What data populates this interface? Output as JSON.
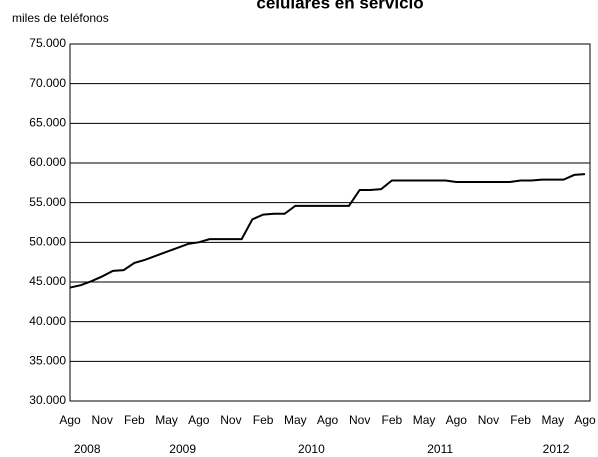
{
  "chart_data": {
    "type": "line",
    "title": "celulares en servicio",
    "y_label": "miles de teléfonos",
    "categories": [
      "Ago",
      null,
      null,
      "Nov",
      null,
      null,
      "Feb",
      null,
      null,
      "May",
      null,
      null,
      "Ago",
      null,
      null,
      "Nov",
      null,
      null,
      "Feb",
      null,
      null,
      "May",
      null,
      null,
      "Ago",
      null,
      null,
      "Nov",
      null,
      null,
      "Feb",
      null,
      null,
      "May",
      null,
      null,
      "Ago",
      null,
      null,
      "Nov",
      null,
      null,
      "Feb",
      null,
      null,
      "May",
      null,
      null,
      "Ago"
    ],
    "year_labels": [
      "2008",
      "2009",
      "2010",
      "2011",
      "2012"
    ],
    "series": [
      {
        "name": "celulares en servicio",
        "color": "#000000",
        "values": [
          44300,
          44600,
          45100,
          45700,
          46400,
          46500,
          47400,
          47800,
          48300,
          48800,
          49300,
          49800,
          50000,
          50400,
          50400,
          50400,
          50400,
          52900,
          53500,
          53600,
          53600,
          54600,
          54600,
          54600,
          54600,
          54600,
          54600,
          56600,
          56600,
          56700,
          57800,
          57800,
          57800,
          57800,
          57800,
          57800,
          57600,
          57600,
          57600,
          57600,
          57600,
          57600,
          57800,
          57800,
          57900,
          57900,
          57900,
          58500,
          58600
        ]
      }
    ],
    "ylim": [
      30000,
      75000
    ],
    "yticks": [
      {
        "value": 30000,
        "label": "30.000"
      },
      {
        "value": 35000,
        "label": "35.000"
      },
      {
        "value": 40000,
        "label": "40.000"
      },
      {
        "value": 45000,
        "label": "45.000"
      },
      {
        "value": 50000,
        "label": "50.000"
      },
      {
        "value": 55000,
        "label": "55.000"
      },
      {
        "value": 60000,
        "label": "60.000"
      },
      {
        "value": 65000,
        "label": "65.000"
      },
      {
        "value": 70000,
        "label": "70.000"
      },
      {
        "value": 75000,
        "label": "75.000"
      }
    ],
    "grid": true
  }
}
